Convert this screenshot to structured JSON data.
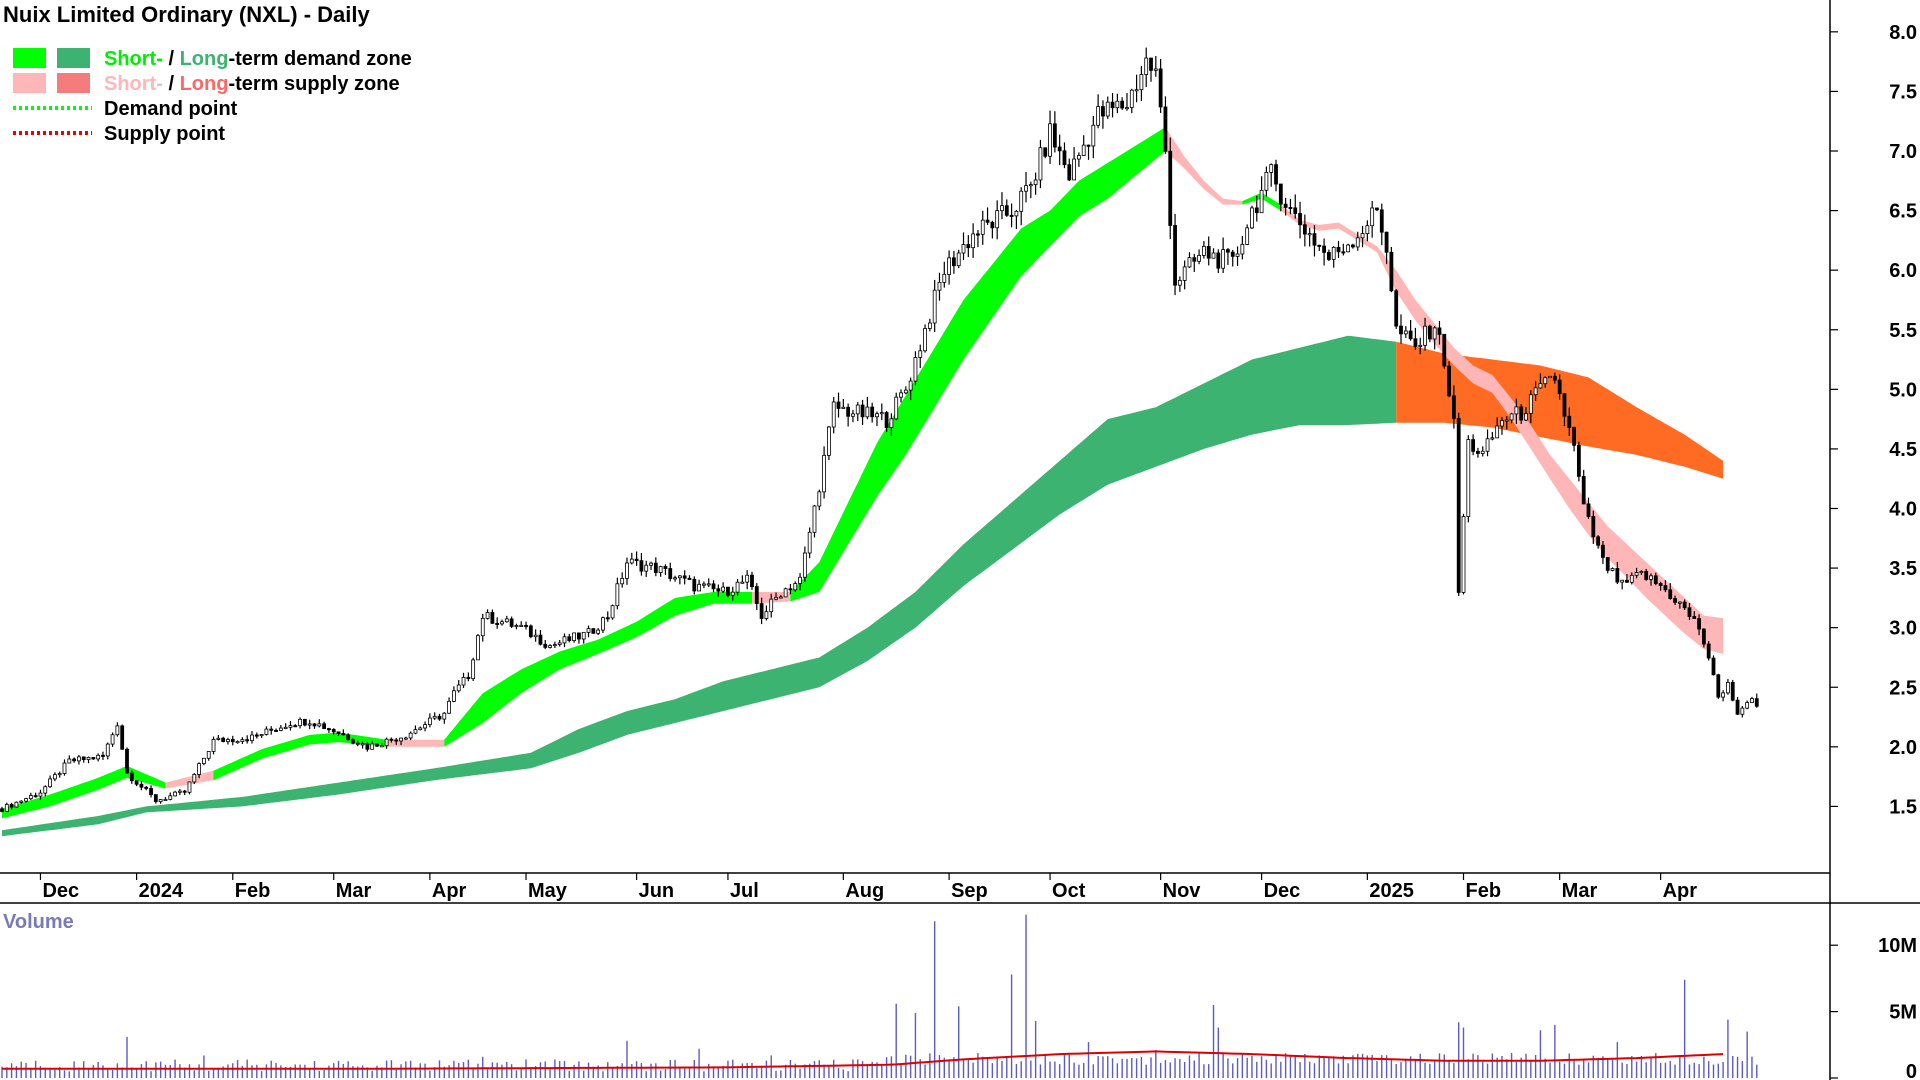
{
  "chart_data": {
    "type": "candlestick",
    "title": "Nuix Limited Ordinary (NXL) - Daily",
    "legend": [
      {
        "label_parts": [
          "Short-",
          " / ",
          "Long",
          "-term demand zone"
        ],
        "colors": [
          "#00ee00",
          "#000000",
          "#3cb371",
          "#000000"
        ],
        "swatches": [
          "#00ff00",
          "#3cb371"
        ]
      },
      {
        "label_parts": [
          "Short-",
          " / ",
          "Long",
          "-term supply zone"
        ],
        "colors": [
          "#ffb6b6",
          "#000000",
          "#ff6666",
          "#000000"
        ],
        "swatches": [
          "#ffb6b6",
          "#f47c7c"
        ]
      },
      {
        "label": "Demand point",
        "line_color": "#00ff00",
        "style": "dotted"
      },
      {
        "label": "Supply point",
        "line_color": "#ee0000",
        "style": "dotted"
      }
    ],
    "y_axis": {
      "ticks": [
        "1.5",
        "2.0",
        "2.5",
        "3.0",
        "3.5",
        "4.0",
        "4.5",
        "5.0",
        "5.5",
        "6.0",
        "6.5",
        "7.0",
        "7.5",
        "8.0"
      ],
      "ylim": [
        1.0,
        8.2
      ],
      "position": "right"
    },
    "x_axis": {
      "ticks": [
        "Dec",
        "2024",
        "Feb",
        "Mar",
        "Apr",
        "May",
        "Jun",
        "Jul",
        "Aug",
        "Sep",
        "Oct",
        "Nov",
        "Dec",
        "2025",
        "Feb",
        "Mar",
        "Apr"
      ],
      "tick_positions": [
        8,
        28,
        48,
        69,
        89,
        109,
        132,
        151,
        175,
        197,
        218,
        241,
        262,
        284,
        304,
        324,
        345
      ]
    },
    "price_path": [
      [
        0,
        1.48
      ],
      [
        8,
        1.62
      ],
      [
        14,
        1.88
      ],
      [
        21,
        1.92
      ],
      [
        24,
        2.2
      ],
      [
        26,
        1.78
      ],
      [
        32,
        1.55
      ],
      [
        38,
        1.62
      ],
      [
        44,
        2.05
      ],
      [
        52,
        2.08
      ],
      [
        60,
        2.2
      ],
      [
        64,
        2.22
      ],
      [
        70,
        2.12
      ],
      [
        76,
        2.0
      ],
      [
        84,
        2.1
      ],
      [
        92,
        2.28
      ],
      [
        94,
        2.45
      ],
      [
        97,
        2.6
      ],
      [
        100,
        3.1
      ],
      [
        108,
        3.0
      ],
      [
        114,
        2.85
      ],
      [
        122,
        2.95
      ],
      [
        126,
        3.1
      ],
      [
        130,
        3.55
      ],
      [
        136,
        3.5
      ],
      [
        144,
        3.35
      ],
      [
        150,
        3.3
      ],
      [
        155,
        3.4
      ],
      [
        158,
        3.1
      ],
      [
        162,
        3.3
      ],
      [
        166,
        3.4
      ],
      [
        170,
        4.2
      ],
      [
        173,
        4.85
      ],
      [
        178,
        4.8
      ],
      [
        184,
        4.75
      ],
      [
        188,
        5.0
      ],
      [
        192,
        5.5
      ],
      [
        196,
        6.0
      ],
      [
        202,
        6.3
      ],
      [
        210,
        6.5
      ],
      [
        214,
        6.7
      ],
      [
        218,
        7.15
      ],
      [
        222,
        6.8
      ],
      [
        228,
        7.3
      ],
      [
        234,
        7.4
      ],
      [
        238,
        7.75
      ],
      [
        240,
        7.65
      ],
      [
        242,
        7.0
      ],
      [
        244,
        5.9
      ],
      [
        250,
        6.15
      ],
      [
        256,
        6.05
      ],
      [
        260,
        6.5
      ],
      [
        264,
        6.8
      ],
      [
        268,
        6.5
      ],
      [
        272,
        6.3
      ],
      [
        276,
        6.1
      ],
      [
        282,
        6.3
      ],
      [
        286,
        6.5
      ],
      [
        288,
        6.2
      ],
      [
        290,
        5.5
      ],
      [
        294,
        5.35
      ],
      [
        298,
        5.55
      ],
      [
        300,
        5.25
      ],
      [
        302,
        4.7
      ],
      [
        303,
        3.3
      ],
      [
        305,
        4.55
      ],
      [
        308,
        4.45
      ],
      [
        312,
        4.75
      ],
      [
        316,
        4.8
      ],
      [
        320,
        5.0
      ],
      [
        323,
        5.1
      ],
      [
        325,
        4.8
      ],
      [
        327,
        4.5
      ],
      [
        329,
        4.0
      ],
      [
        333,
        3.55
      ],
      [
        337,
        3.35
      ],
      [
        341,
        3.45
      ],
      [
        345,
        3.35
      ],
      [
        349,
        3.2
      ],
      [
        353,
        3.0
      ],
      [
        355,
        2.75
      ],
      [
        357,
        2.4
      ],
      [
        359,
        2.55
      ],
      [
        361,
        2.25
      ],
      [
        363,
        2.4
      ],
      [
        366,
        2.35
      ]
    ],
    "short_term_zone": {
      "x": [
        0,
        10,
        20,
        26,
        34,
        44,
        54,
        64,
        70,
        80,
        92,
        100,
        108,
        116,
        124,
        132,
        140,
        148,
        156,
        164,
        170,
        176,
        182,
        188,
        194,
        200,
        206,
        212,
        218,
        224,
        230,
        236,
        242,
        246,
        250,
        254,
        258,
        262,
        266,
        270,
        274,
        278,
        282,
        286,
        290,
        294,
        298,
        302,
        306,
        310,
        314,
        318,
        322,
        326,
        330,
        334,
        338,
        342,
        346,
        350,
        354,
        358
      ],
      "top": [
        1.48,
        1.6,
        1.74,
        1.84,
        1.7,
        1.8,
        1.98,
        2.1,
        2.12,
        2.06,
        2.06,
        2.45,
        2.65,
        2.8,
        2.9,
        3.05,
        3.25,
        3.3,
        3.3,
        3.3,
        3.55,
        4.05,
        4.55,
        4.95,
        5.35,
        5.75,
        6.05,
        6.35,
        6.5,
        6.75,
        6.9,
        7.05,
        7.2,
        6.95,
        6.75,
        6.6,
        6.58,
        6.65,
        6.55,
        6.42,
        6.38,
        6.4,
        6.3,
        6.2,
        6.0,
        5.75,
        5.55,
        5.35,
        5.2,
        5.12,
        4.92,
        4.7,
        4.45,
        4.25,
        4.05,
        3.85,
        3.7,
        3.55,
        3.4,
        3.25,
        3.1,
        3.08
      ],
      "bottom": [
        1.4,
        1.5,
        1.64,
        1.74,
        1.65,
        1.72,
        1.9,
        2.02,
        2.04,
        2.0,
        2.0,
        2.2,
        2.45,
        2.65,
        2.78,
        2.92,
        3.1,
        3.2,
        3.2,
        3.22,
        3.3,
        3.7,
        4.1,
        4.45,
        4.85,
        5.25,
        5.6,
        5.95,
        6.2,
        6.45,
        6.6,
        6.8,
        7.0,
        6.85,
        6.68,
        6.55,
        6.55,
        6.6,
        6.5,
        6.38,
        6.33,
        6.35,
        6.25,
        6.15,
        5.82,
        5.58,
        5.38,
        5.2,
        5.05,
        4.97,
        4.75,
        4.5,
        4.25,
        4.0,
        3.78,
        3.58,
        3.42,
        3.25,
        3.1,
        2.95,
        2.82,
        2.78
      ],
      "state": [
        "demand",
        "demand",
        "demand",
        "demand",
        "supply",
        "demand",
        "demand",
        "demand",
        "demand",
        "supply",
        "demand",
        "demand",
        "demand",
        "demand",
        "demand",
        "demand",
        "demand",
        "demand",
        "supply",
        "demand",
        "demand",
        "demand",
        "demand",
        "demand",
        "demand",
        "demand",
        "demand",
        "demand",
        "demand",
        "demand",
        "demand",
        "demand",
        "supply",
        "supply",
        "supply",
        "supply",
        "demand",
        "demand",
        "supply",
        "supply",
        "supply",
        "supply",
        "supply",
        "supply",
        "supply",
        "supply",
        "supply",
        "supply",
        "supply",
        "supply",
        "supply",
        "supply",
        "supply",
        "supply",
        "supply",
        "supply",
        "supply",
        "supply",
        "supply",
        "supply",
        "supply",
        "supply"
      ]
    },
    "long_term_zone": {
      "x": [
        0,
        20,
        30,
        50,
        70,
        90,
        110,
        120,
        130,
        140,
        150,
        160,
        170,
        180,
        190,
        200,
        210,
        220,
        230,
        240,
        250,
        260,
        270,
        280,
        290,
        300,
        310,
        320,
        330,
        340,
        350,
        358
      ],
      "top": [
        1.3,
        1.42,
        1.5,
        1.58,
        1.7,
        1.82,
        1.95,
        2.15,
        2.3,
        2.4,
        2.55,
        2.65,
        2.75,
        3.0,
        3.3,
        3.7,
        4.05,
        4.4,
        4.75,
        4.85,
        5.05,
        5.25,
        5.35,
        5.45,
        5.4,
        5.3,
        5.25,
        5.2,
        5.1,
        4.85,
        4.62,
        4.4
      ],
      "bottom": [
        1.25,
        1.35,
        1.45,
        1.5,
        1.6,
        1.72,
        1.82,
        1.95,
        2.1,
        2.2,
        2.3,
        2.4,
        2.5,
        2.72,
        3.0,
        3.35,
        3.65,
        3.95,
        4.2,
        4.35,
        4.5,
        4.62,
        4.7,
        4.7,
        4.72,
        4.72,
        4.68,
        4.6,
        4.52,
        4.45,
        4.35,
        4.25
      ],
      "state": [
        "demand",
        "demand",
        "demand",
        "demand",
        "demand",
        "demand",
        "demand",
        "demand",
        "demand",
        "demand",
        "demand",
        "demand",
        "demand",
        "demand",
        "demand",
        "demand",
        "demand",
        "demand",
        "demand",
        "demand",
        "demand",
        "demand",
        "demand",
        "demand",
        "supply",
        "supply",
        "supply",
        "supply",
        "supply",
        "supply",
        "supply",
        "supply"
      ]
    },
    "volume": {
      "title": "Volume",
      "ticks": [
        "0",
        "5M",
        "10M"
      ],
      "ylim": [
        0,
        12500000
      ],
      "spikes": [
        [
          8,
          900000
        ],
        [
          24,
          1100000
        ],
        [
          26,
          3100000
        ],
        [
          42,
          1700000
        ],
        [
          63,
          1000000
        ],
        [
          76,
          800000
        ],
        [
          100,
          1600000
        ],
        [
          111,
          900000
        ],
        [
          130,
          2800000
        ],
        [
          145,
          2200000
        ],
        [
          160,
          1700000
        ],
        [
          178,
          1400000
        ],
        [
          186,
          5600000
        ],
        [
          190,
          4900000
        ],
        [
          194,
          11800000
        ],
        [
          199,
          5400000
        ],
        [
          210,
          7800000
        ],
        [
          213,
          12300000
        ],
        [
          215,
          4300000
        ],
        [
          226,
          2700000
        ],
        [
          240,
          2100000
        ],
        [
          252,
          5500000
        ],
        [
          253,
          3800000
        ],
        [
          270,
          1200000
        ],
        [
          284,
          1700000
        ],
        [
          303,
          4200000
        ],
        [
          304,
          3800000
        ],
        [
          320,
          3600000
        ],
        [
          323,
          4000000
        ],
        [
          336,
          2700000
        ],
        [
          350,
          7400000
        ],
        [
          359,
          4400000
        ],
        [
          363,
          3500000
        ]
      ],
      "avg_line": [
        [
          0,
          700000
        ],
        [
          80,
          700000
        ],
        [
          150,
          800000
        ],
        [
          185,
          1000000
        ],
        [
          200,
          1400000
        ],
        [
          220,
          1800000
        ],
        [
          240,
          2000000
        ],
        [
          260,
          1800000
        ],
        [
          280,
          1500000
        ],
        [
          300,
          1300000
        ],
        [
          320,
          1300000
        ],
        [
          340,
          1500000
        ],
        [
          358,
          1800000
        ]
      ],
      "avg_color": "#dd0000",
      "bar_color": "#5b5bc4"
    },
    "colors": {
      "demand_short": "#00ff00",
      "demand_long": "#3cb371",
      "supply_short": "#ffb6b6",
      "supply_long": "#ff6b22",
      "candle": "#000000"
    }
  }
}
